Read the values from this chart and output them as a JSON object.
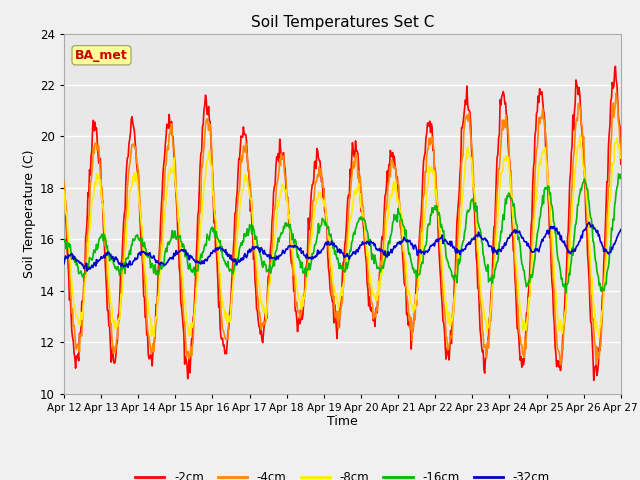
{
  "title": "Soil Temperatures Set C",
  "xlabel": "Time",
  "ylabel": "Soil Temperature (C)",
  "ylim": [
    10,
    24
  ],
  "yticks": [
    10,
    12,
    14,
    16,
    18,
    20,
    22,
    24
  ],
  "xlim": [
    0,
    360
  ],
  "xtick_labels": [
    "Apr 12",
    "Apr 13",
    "Apr 14",
    "Apr 15",
    "Apr 16",
    "Apr 17",
    "Apr 18",
    "Apr 19",
    "Apr 20",
    "Apr 21",
    "Apr 22",
    "Apr 23",
    "Apr 24",
    "Apr 25",
    "Apr 26",
    "Apr 27"
  ],
  "xtick_positions": [
    0,
    24,
    48,
    72,
    96,
    120,
    144,
    168,
    192,
    216,
    240,
    264,
    288,
    312,
    336,
    360
  ],
  "colors": {
    "-2cm": "#ff0000",
    "-4cm": "#ff8800",
    "-8cm": "#ffee00",
    "-16cm": "#00bb00",
    "-32cm": "#0000cc"
  },
  "legend_labels": [
    "-2cm",
    "-4cm",
    "-8cm",
    "-16cm",
    "-32cm"
  ],
  "annotation_text": "BA_met",
  "annotation_color": "#cc0000",
  "annotation_bg": "#ffff99",
  "fig_facecolor": "#f0f0f0",
  "plot_facecolor": "#e8e8e8",
  "grid_color": "#ffffff",
  "line_width": 1.2
}
